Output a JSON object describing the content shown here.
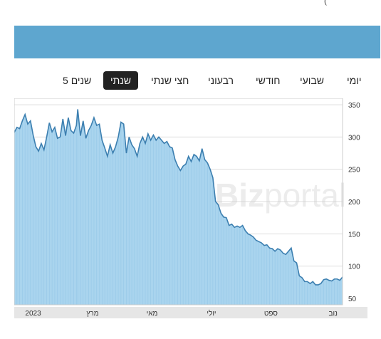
{
  "header": {
    "top_hint": "("
  },
  "tabs": [
    {
      "label": "יומי",
      "active": false
    },
    {
      "label": "שבועי",
      "active": false
    },
    {
      "label": "חודשי",
      "active": false
    },
    {
      "label": "רבעוני",
      "active": false
    },
    {
      "label": "חצי שנתי",
      "active": false
    },
    {
      "label": "שנתי",
      "active": true
    },
    {
      "label": "5 שנים",
      "active": false
    }
  ],
  "watermark": {
    "text_bold": "Biz",
    "text_light": "portal"
  },
  "colors": {
    "banner": "#5ea6cf",
    "line": "#3c7fb0",
    "fill": "#a9d4ee",
    "active_tab": "#222222"
  },
  "chart_data": {
    "type": "area",
    "title": "",
    "xlabel": "",
    "ylabel": "",
    "ylim": [
      40,
      360
    ],
    "y_ticks": [
      50,
      100,
      150,
      200,
      250,
      300,
      350
    ],
    "y_axis_side": "right",
    "x_month_labels": [
      {
        "label": "2023",
        "x": 14
      },
      {
        "label": "מרץ",
        "x": 58
      },
      {
        "label": "מאי",
        "x": 102
      },
      {
        "label": "יולי",
        "x": 146
      },
      {
        "label": "ספט",
        "x": 190
      },
      {
        "label": "נוב",
        "x": 236
      }
    ],
    "series": [
      {
        "values": [
          [
            0,
            307
          ],
          [
            2,
            315
          ],
          [
            4,
            313
          ],
          [
            6,
            325
          ],
          [
            8,
            335
          ],
          [
            10,
            320
          ],
          [
            12,
            325
          ],
          [
            14,
            303
          ],
          [
            16,
            285
          ],
          [
            18,
            278
          ],
          [
            20,
            290
          ],
          [
            22,
            280
          ],
          [
            24,
            300
          ],
          [
            26,
            322
          ],
          [
            28,
            308
          ],
          [
            30,
            315
          ],
          [
            32,
            298
          ],
          [
            34,
            300
          ],
          [
            36,
            328
          ],
          [
            38,
            302
          ],
          [
            40,
            330
          ],
          [
            42,
            310
          ],
          [
            44,
            306
          ],
          [
            46,
            318
          ],
          [
            47,
            343
          ],
          [
            49,
            302
          ],
          [
            51,
            325
          ],
          [
            53,
            298
          ],
          [
            55,
            310
          ],
          [
            57,
            318
          ],
          [
            59,
            330
          ],
          [
            61,
            318
          ],
          [
            63,
            320
          ],
          [
            65,
            295
          ],
          [
            67,
            283
          ],
          [
            69,
            270
          ],
          [
            71,
            288
          ],
          [
            73,
            275
          ],
          [
            75,
            285
          ],
          [
            77,
            300
          ],
          [
            79,
            323
          ],
          [
            81,
            320
          ],
          [
            83,
            275
          ],
          [
            85,
            300
          ],
          [
            87,
            288
          ],
          [
            89,
            282
          ],
          [
            91,
            270
          ],
          [
            93,
            290
          ],
          [
            95,
            300
          ],
          [
            97,
            290
          ],
          [
            99,
            305
          ],
          [
            101,
            295
          ],
          [
            103,
            303
          ],
          [
            105,
            295
          ],
          [
            107,
            300
          ],
          [
            109,
            295
          ],
          [
            111,
            290
          ],
          [
            113,
            293
          ],
          [
            115,
            285
          ],
          [
            117,
            283
          ],
          [
            119,
            265
          ],
          [
            121,
            255
          ],
          [
            123,
            248
          ],
          [
            125,
            255
          ],
          [
            127,
            258
          ],
          [
            129,
            270
          ],
          [
            131,
            262
          ],
          [
            133,
            273
          ],
          [
            135,
            270
          ],
          [
            137,
            263
          ],
          [
            139,
            282
          ],
          [
            141,
            265
          ],
          [
            143,
            260
          ],
          [
            145,
            250
          ],
          [
            147,
            237
          ],
          [
            149,
            200
          ],
          [
            151,
            195
          ],
          [
            153,
            182
          ],
          [
            155,
            176
          ],
          [
            157,
            175
          ],
          [
            159,
            163
          ],
          [
            161,
            165
          ],
          [
            163,
            160
          ],
          [
            165,
            162
          ],
          [
            167,
            160
          ],
          [
            169,
            163
          ],
          [
            171,
            155
          ],
          [
            173,
            150
          ],
          [
            175,
            148
          ],
          [
            177,
            145
          ],
          [
            179,
            140
          ],
          [
            181,
            138
          ],
          [
            183,
            136
          ],
          [
            185,
            132
          ],
          [
            187,
            133
          ],
          [
            189,
            128
          ],
          [
            191,
            127
          ],
          [
            193,
            123
          ],
          [
            195,
            127
          ],
          [
            197,
            125
          ],
          [
            199,
            120
          ],
          [
            201,
            118
          ],
          [
            203,
            123
          ],
          [
            205,
            128
          ],
          [
            207,
            108
          ],
          [
            209,
            105
          ],
          [
            211,
            85
          ],
          [
            213,
            82
          ],
          [
            215,
            76
          ],
          [
            217,
            76
          ],
          [
            219,
            73
          ],
          [
            221,
            76
          ],
          [
            223,
            71
          ],
          [
            225,
            71
          ],
          [
            227,
            73
          ],
          [
            229,
            79
          ],
          [
            231,
            80
          ],
          [
            233,
            78
          ],
          [
            235,
            77
          ],
          [
            237,
            80
          ],
          [
            239,
            80
          ],
          [
            241,
            78
          ],
          [
            243,
            83
          ]
        ]
      }
    ]
  }
}
